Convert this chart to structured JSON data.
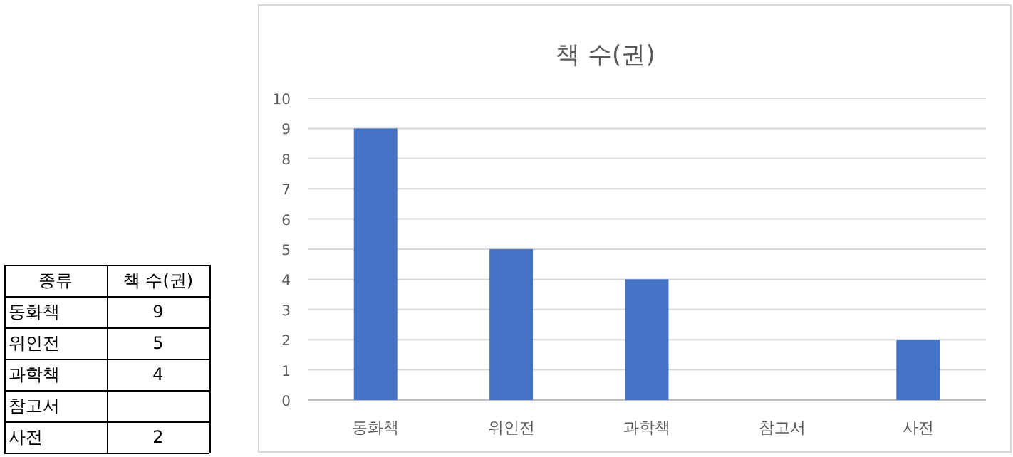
{
  "chart_data": [
    {
      "type": "other",
      "annotations": [
        "종류",
        "책 수(권)",
        "동화책",
        "9",
        "위인전",
        "5",
        "과학책",
        "4",
        "참고서",
        null,
        "사전",
        "2"
      ]
    },
    {
      "type": "bar",
      "title": "책 수(권)",
      "categories": [
        "동화책",
        "위인전",
        "과학책",
        "참고서",
        "사전"
      ],
      "values": [
        9,
        5,
        4,
        null,
        2
      ],
      "color": "#4472c4",
      "ylim": [
        0,
        10
      ],
      "yticks": [
        0,
        1,
        2,
        3,
        4,
        5,
        6,
        7,
        8,
        9,
        10
      ],
      "grid": "y"
    }
  ]
}
